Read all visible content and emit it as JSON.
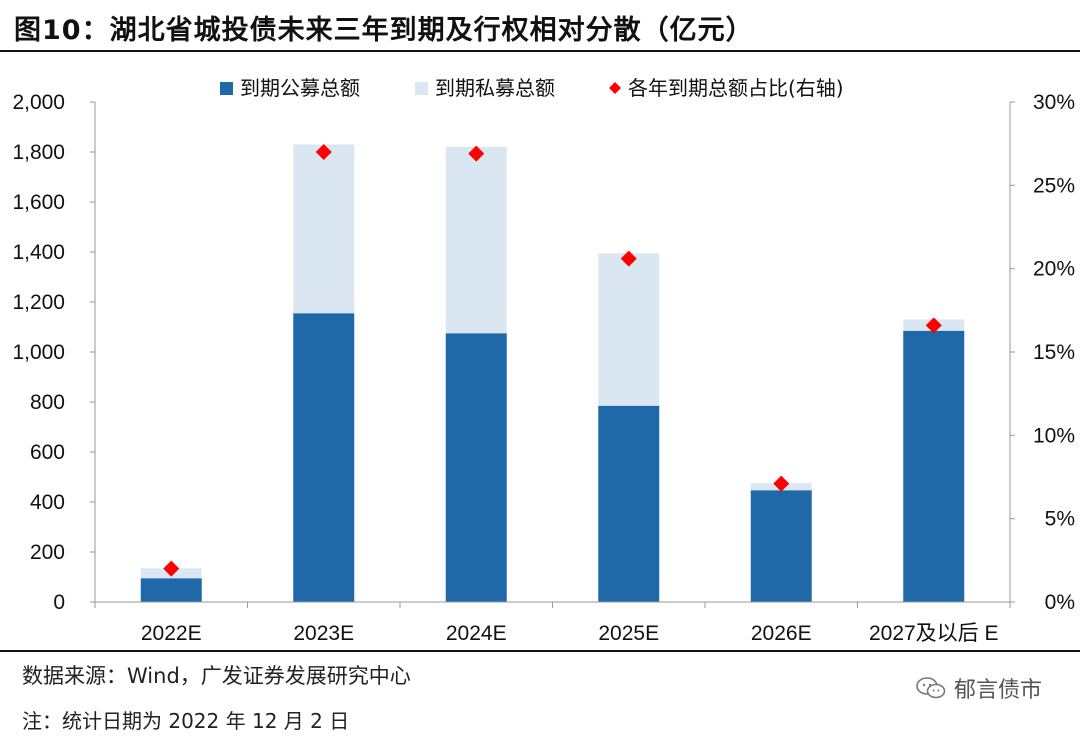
{
  "figure_title": "图10：湖北省城投债未来三年到期及行权相对分散（亿元）",
  "source": "数据来源：Wind，广发证券发展研究中心",
  "note": "注：统计日期为 2022 年 12 月 2 日",
  "watermark": "郁言债市",
  "colors": {
    "public": "#1f69a8",
    "private": "#dbe6f3",
    "ratio": "#ff0000",
    "grid": "#d9d9d9"
  },
  "chart_data": {
    "type": "bar",
    "stacked": true,
    "categories": [
      "2022E",
      "2023E",
      "2024E",
      "2025E",
      "2026E",
      "2027及以后 E"
    ],
    "series": [
      {
        "name": "到期公募总额",
        "values": [
          95,
          1155,
          1075,
          785,
          447,
          1085
        ]
      },
      {
        "name": "到期私募总额",
        "values": [
          40,
          675,
          745,
          610,
          28,
          45
        ]
      }
    ],
    "line_series": {
      "name": "各年到期总额占比(右轴)",
      "values": [
        2.0,
        27.0,
        26.9,
        20.6,
        7.1,
        16.6
      ],
      "marker": "diamond"
    },
    "ylim": [
      0,
      2000
    ],
    "yticks": [
      "0",
      "200",
      "400",
      "600",
      "800",
      "1,000",
      "1,200",
      "1,400",
      "1,600",
      "1,800",
      "2,000"
    ],
    "y2lim": [
      0,
      30
    ],
    "y2ticks": [
      "0%",
      "5%",
      "10%",
      "15%",
      "20%",
      "25%",
      "30%"
    ],
    "legend": [
      "到期公募总额",
      "到期私募总额",
      "各年到期总额占比(右轴)"
    ]
  }
}
